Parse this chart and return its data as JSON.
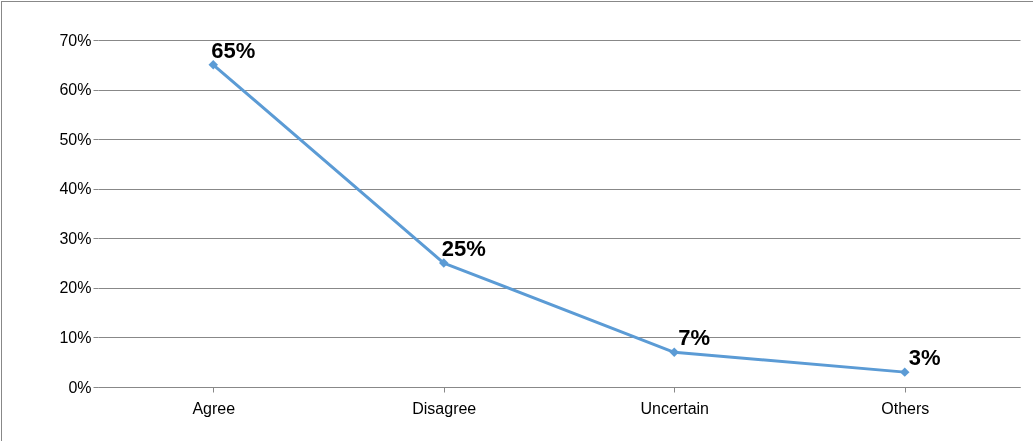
{
  "chart_data": {
    "type": "line",
    "categories": [
      "Agree",
      "Disagree",
      "Uncertain",
      "Others"
    ],
    "series": [
      {
        "color": "#5b9bd5",
        "values": [
          65,
          25,
          7,
          3
        ],
        "value_labels": [
          "65%",
          "25%",
          "7%",
          "3%"
        ]
      }
    ],
    "ylim": [
      0,
      70
    ],
    "yticks": [
      {
        "value": 0,
        "label": "0%"
      },
      {
        "value": 10,
        "label": "10%"
      },
      {
        "value": 20,
        "label": "20%"
      },
      {
        "value": 30,
        "label": "30%"
      },
      {
        "value": 40,
        "label": "40%"
      },
      {
        "value": 50,
        "label": "50%"
      },
      {
        "value": 60,
        "label": "60%"
      },
      {
        "value": 70,
        "label": "70%"
      }
    ],
    "grid": "y",
    "marker": "diamond",
    "line_style": "solid"
  }
}
